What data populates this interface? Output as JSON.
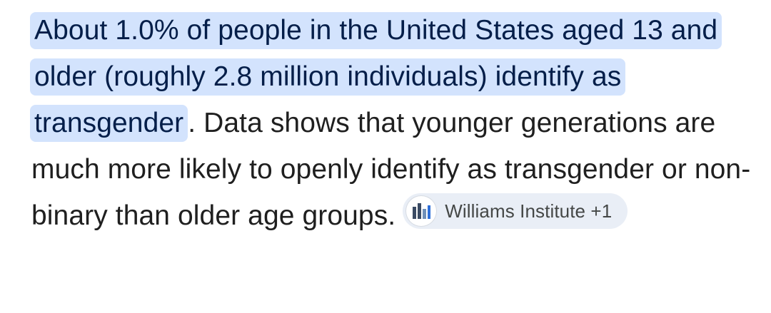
{
  "answer": {
    "highlighted_text": "About 1.0% of people in the United States aged 13 and older (roughly 2.8 million individuals) identify as transgender",
    "body_text": ". Data shows that younger generations are much more likely to openly identify as transgender or non-binary than older age groups."
  },
  "source_chip": {
    "label": "Williams Institute +1",
    "logo_icon": "williams-institute-logo-icon"
  },
  "colors": {
    "highlight_bg": "#d3e3fd",
    "highlight_text": "#041e49",
    "body_text": "#1f1f1f",
    "chip_bg": "#e9eef6",
    "chip_text": "#444746"
  }
}
